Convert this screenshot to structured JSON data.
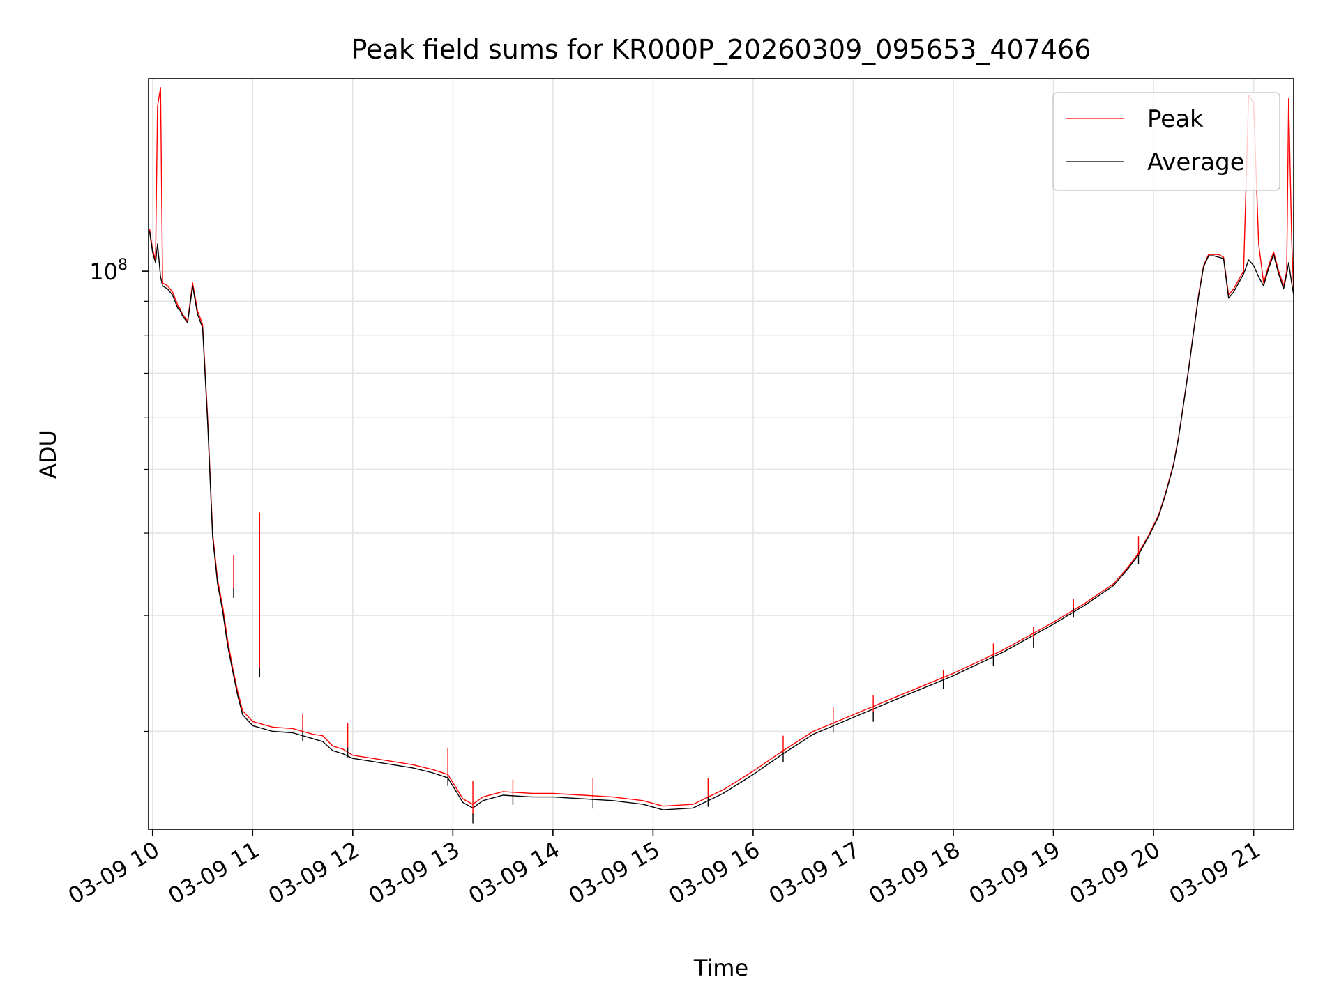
{
  "chart_data": {
    "type": "line",
    "title": "Peak field sums for KR000P_20260309_095653_407466",
    "xlabel": "Time",
    "ylabel": "ADU",
    "yscale": "log",
    "x_unit": "hours since 03-09 00:00",
    "xlim": [
      9.96,
      21.4
    ],
    "ylim": [
      14200000,
      196000000
    ],
    "grid": true,
    "legend_position": "top-right",
    "x_ticks": [
      {
        "value": 10,
        "label": "03-09 10"
      },
      {
        "value": 11,
        "label": "03-09 11"
      },
      {
        "value": 12,
        "label": "03-09 12"
      },
      {
        "value": 13,
        "label": "03-09 13"
      },
      {
        "value": 14,
        "label": "03-09 14"
      },
      {
        "value": 15,
        "label": "03-09 15"
      },
      {
        "value": 16,
        "label": "03-09 16"
      },
      {
        "value": 17,
        "label": "03-09 17"
      },
      {
        "value": 18,
        "label": "03-09 18"
      },
      {
        "value": 19,
        "label": "03-09 19"
      },
      {
        "value": 20,
        "label": "03-09 20"
      },
      {
        "value": 21,
        "label": "03-09 21"
      }
    ],
    "y_major_ticks": [
      {
        "value": 100000000,
        "base": "10",
        "exp": "8"
      }
    ],
    "y_minor_ticks": [
      20000000,
      30000000,
      40000000,
      50000000,
      60000000,
      70000000,
      80000000,
      90000000
    ],
    "series": [
      {
        "name": "Peak",
        "color": "#ff0000",
        "x": [
          9.97,
          10.0,
          10.03,
          10.05,
          10.08,
          10.1,
          10.15,
          10.2,
          10.25,
          10.26,
          10.27,
          10.3,
          10.35,
          10.4,
          10.45,
          10.5,
          10.55,
          10.6,
          10.65,
          10.7,
          10.75,
          10.8,
          10.85,
          10.9,
          11.0,
          11.2,
          11.4,
          11.5,
          11.6,
          11.7,
          11.8,
          11.9,
          12.0,
          12.2,
          12.4,
          12.6,
          12.8,
          12.95,
          13.1,
          13.2,
          13.3,
          13.5,
          13.8,
          14.0,
          14.3,
          14.6,
          14.9,
          15.1,
          15.4,
          15.7,
          16.0,
          16.3,
          16.6,
          17.0,
          17.5,
          18.0,
          18.5,
          19.0,
          19.3,
          19.6,
          19.75,
          19.85,
          19.95,
          20.05,
          20.12,
          20.2,
          20.25,
          20.3,
          20.35,
          20.4,
          20.45,
          20.5,
          20.55,
          20.6,
          20.65,
          20.7,
          20.75,
          20.8,
          20.85,
          20.9,
          20.95,
          21.0,
          21.05,
          21.1,
          21.15,
          21.2,
          21.25,
          21.28,
          21.3,
          21.33,
          21.35,
          21.38,
          21.4
        ],
        "values": [
          116000000,
          108000000,
          104000000,
          178000000,
          190000000,
          96000000,
          95000000,
          93000000,
          89000000,
          88000000,
          88000000,
          86000000,
          84000000,
          96000000,
          87000000,
          83000000,
          60000000,
          40000000,
          34000000,
          31000000,
          27500000,
          25000000,
          23000000,
          21500000,
          20700000,
          20300000,
          20200000,
          20000000,
          19800000,
          19700000,
          19000000,
          18800000,
          18400000,
          18200000,
          18000000,
          17800000,
          17500000,
          17200000,
          15800000,
          15500000,
          15900000,
          16200000,
          16100000,
          16100000,
          16000000,
          15900000,
          15700000,
          15400000,
          15500000,
          16300000,
          17400000,
          18700000,
          20000000,
          21200000,
          22800000,
          24500000,
          26600000,
          29300000,
          31200000,
          33500000,
          35600000,
          37300000,
          39700000,
          42600000,
          46000000,
          51000000,
          56000000,
          63000000,
          71000000,
          81000000,
          92000000,
          102000000,
          106000000,
          106000000,
          106000000,
          105000000,
          92000000,
          94000000,
          97000000,
          100000000,
          185000000,
          180000000,
          110000000,
          96000000,
          102000000,
          107000000,
          100000000,
          97000000,
          95000000,
          100000000,
          183000000,
          112000000,
          93000000
        ]
      },
      {
        "name": "Average",
        "color": "#000000",
        "x": [
          9.97,
          10.0,
          10.03,
          10.05,
          10.08,
          10.1,
          10.15,
          10.2,
          10.25,
          10.26,
          10.27,
          10.3,
          10.35,
          10.4,
          10.45,
          10.5,
          10.55,
          10.6,
          10.65,
          10.7,
          10.75,
          10.8,
          10.85,
          10.9,
          11.0,
          11.2,
          11.4,
          11.5,
          11.6,
          11.7,
          11.8,
          11.9,
          12.0,
          12.2,
          12.4,
          12.6,
          12.8,
          12.95,
          13.1,
          13.2,
          13.3,
          13.5,
          13.8,
          14.0,
          14.3,
          14.6,
          14.9,
          15.1,
          15.4,
          15.7,
          16.0,
          16.3,
          16.6,
          17.0,
          17.5,
          18.0,
          18.5,
          19.0,
          19.3,
          19.6,
          19.75,
          19.85,
          19.95,
          20.05,
          20.12,
          20.2,
          20.25,
          20.3,
          20.35,
          20.4,
          20.45,
          20.5,
          20.55,
          20.6,
          20.65,
          20.7,
          20.75,
          20.8,
          20.85,
          20.9,
          20.95,
          21.0,
          21.05,
          21.1,
          21.15,
          21.2,
          21.25,
          21.28,
          21.3,
          21.33,
          21.35,
          21.38,
          21.4
        ],
        "values": [
          115000000,
          107000000,
          103000000,
          110000000,
          98000000,
          95000000,
          94000000,
          92000000,
          88000000,
          87500000,
          87500000,
          85500000,
          83500000,
          95000000,
          86000000,
          82000000,
          59000000,
          39500000,
          33500000,
          30500000,
          27000000,
          24700000,
          22700000,
          21200000,
          20400000,
          20000000,
          19900000,
          19700000,
          19500000,
          19300000,
          18700000,
          18500000,
          18200000,
          18000000,
          17800000,
          17600000,
          17300000,
          17000000,
          15600000,
          15300000,
          15700000,
          16000000,
          15900000,
          15900000,
          15800000,
          15700000,
          15500000,
          15200000,
          15300000,
          16100000,
          17200000,
          18500000,
          19800000,
          21000000,
          22600000,
          24300000,
          26400000,
          29100000,
          31000000,
          33300000,
          35400000,
          37100000,
          39500000,
          42400000,
          45800000,
          50800000,
          55800000,
          62800000,
          70800000,
          80800000,
          91500000,
          101500000,
          105500000,
          105500000,
          105000000,
          104500000,
          91000000,
          93000000,
          96000000,
          99000000,
          104000000,
          102000000,
          98000000,
          95000000,
          101000000,
          106000000,
          99000000,
          96000000,
          94000000,
          99000000,
          103000000,
          96000000,
          92000000
        ]
      }
    ],
    "spikes": [
      {
        "x": 10.81,
        "peak": 37000000,
        "average": 33000000
      },
      {
        "x": 11.07,
        "peak": 43000000,
        "average": 25000000
      },
      {
        "x": 11.5,
        "peak": 21300000,
        "average": 20000000
      },
      {
        "x": 11.95,
        "peak": 20600000,
        "average": 18900000
      },
      {
        "x": 12.95,
        "peak": 18900000,
        "average": 17100000
      },
      {
        "x": 13.2,
        "peak": 16800000,
        "average": 15000000
      },
      {
        "x": 13.6,
        "peak": 16900000,
        "average": 16000000
      },
      {
        "x": 14.4,
        "peak": 17000000,
        "average": 15800000
      },
      {
        "x": 15.55,
        "peak": 17000000,
        "average": 15900000
      },
      {
        "x": 16.3,
        "peak": 19700000,
        "average": 18600000
      },
      {
        "x": 16.8,
        "peak": 21800000,
        "average": 20600000
      },
      {
        "x": 17.2,
        "peak": 22700000,
        "average": 21400000
      },
      {
        "x": 17.9,
        "peak": 24800000,
        "average": 24000000
      },
      {
        "x": 18.4,
        "peak": 27200000,
        "average": 26000000
      },
      {
        "x": 18.8,
        "peak": 28800000,
        "average": 27700000
      },
      {
        "x": 19.2,
        "peak": 31800000,
        "average": 30800000
      },
      {
        "x": 19.85,
        "peak": 39600000,
        "average": 37100000
      }
    ],
    "legend": {
      "entries": [
        {
          "label": "Peak",
          "color": "#ff0000"
        },
        {
          "label": "Average",
          "color": "#000000"
        }
      ]
    }
  }
}
